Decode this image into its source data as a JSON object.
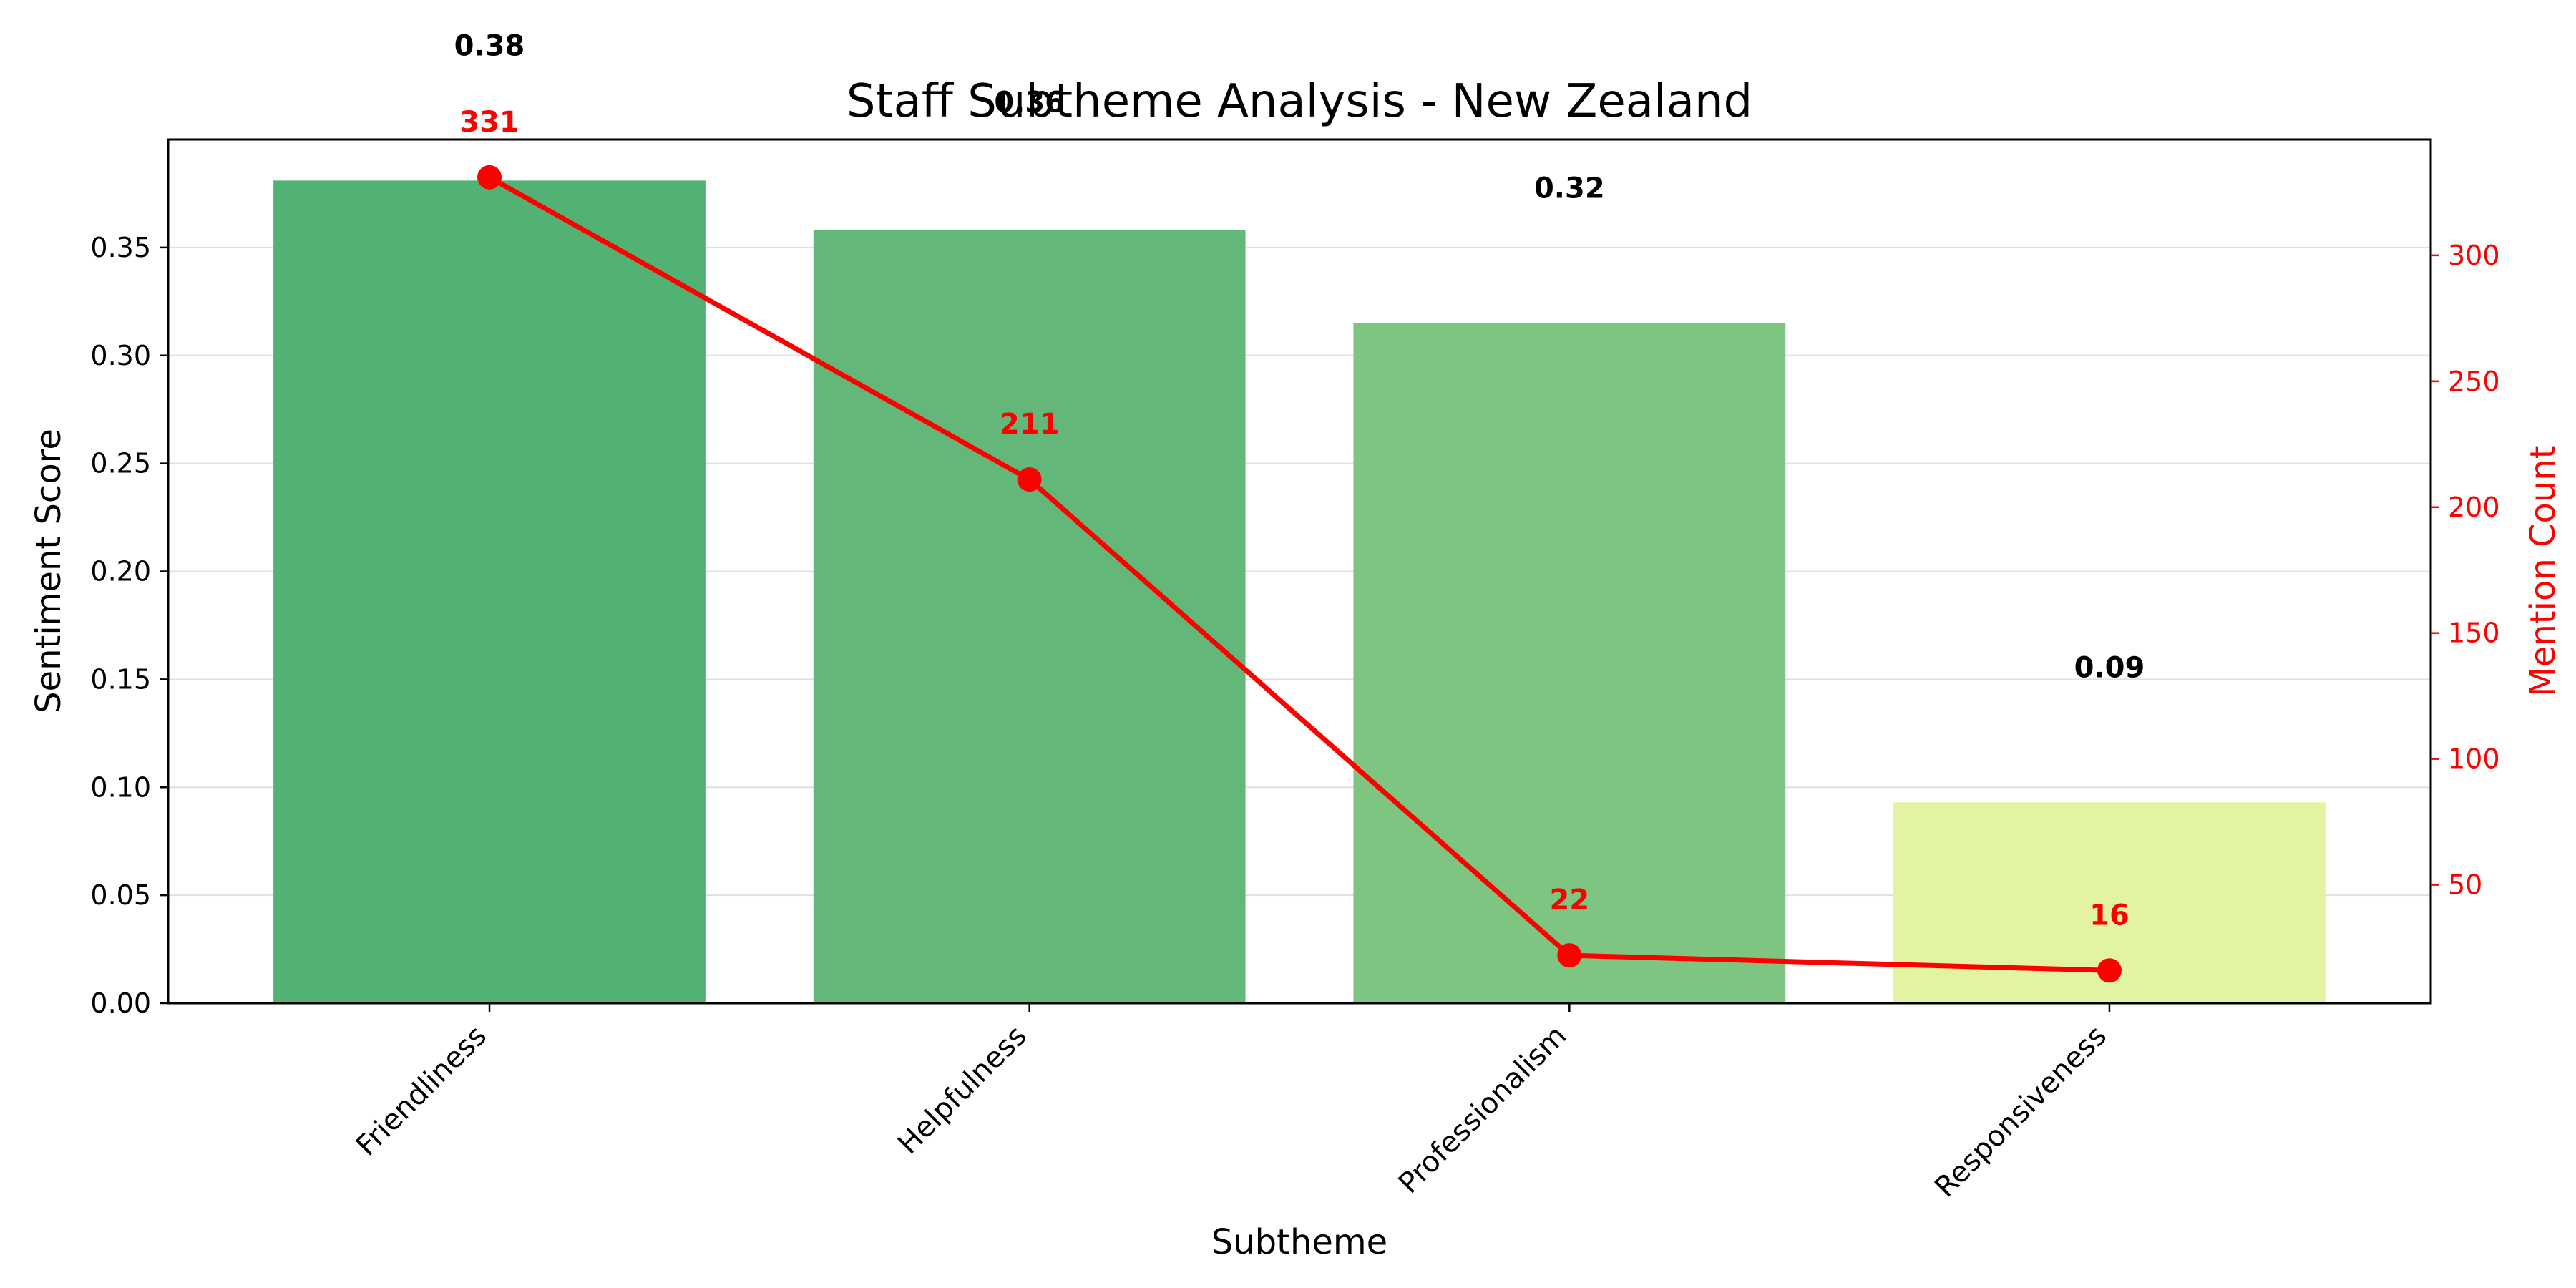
{
  "chart_data": {
    "type": "bar",
    "title": "Staff Subtheme Analysis - New Zealand",
    "xlabel": "Subtheme",
    "ylabel": "Sentiment Score",
    "y2label": "Mention Count",
    "categories": [
      "Friendliness",
      "Helpfulness",
      "Professionalism",
      "Responsiveness"
    ],
    "series": [
      {
        "kind": "bar",
        "axis": "left",
        "values": [
          0.381,
          0.358,
          0.315,
          0.093
        ],
        "value_labels": [
          "0.38",
          "0.36",
          "0.32",
          "0.09"
        ],
        "colors": [
          "#52b274",
          "#63b879",
          "#7dc581",
          "#e2f3a1"
        ]
      },
      {
        "kind": "line",
        "axis": "right",
        "values": [
          331,
          211,
          22,
          16
        ],
        "value_labels": [
          "331",
          "211",
          "22",
          "16"
        ],
        "color": "#ff0000"
      }
    ],
    "ylim": [
      0,
      0.4
    ],
    "y2lim": [
      3,
      346
    ],
    "yticks": [
      0.0,
      0.05,
      0.1,
      0.15,
      0.2,
      0.25,
      0.3,
      0.35
    ],
    "ytick_labels": [
      "0.00",
      "0.05",
      "0.10",
      "0.15",
      "0.20",
      "0.25",
      "0.30",
      "0.35"
    ],
    "y2ticks": [
      50,
      100,
      150,
      200,
      250,
      300
    ],
    "y2tick_labels": [
      "50",
      "100",
      "150",
      "200",
      "250",
      "300"
    ],
    "grid": true,
    "legend": "none"
  }
}
